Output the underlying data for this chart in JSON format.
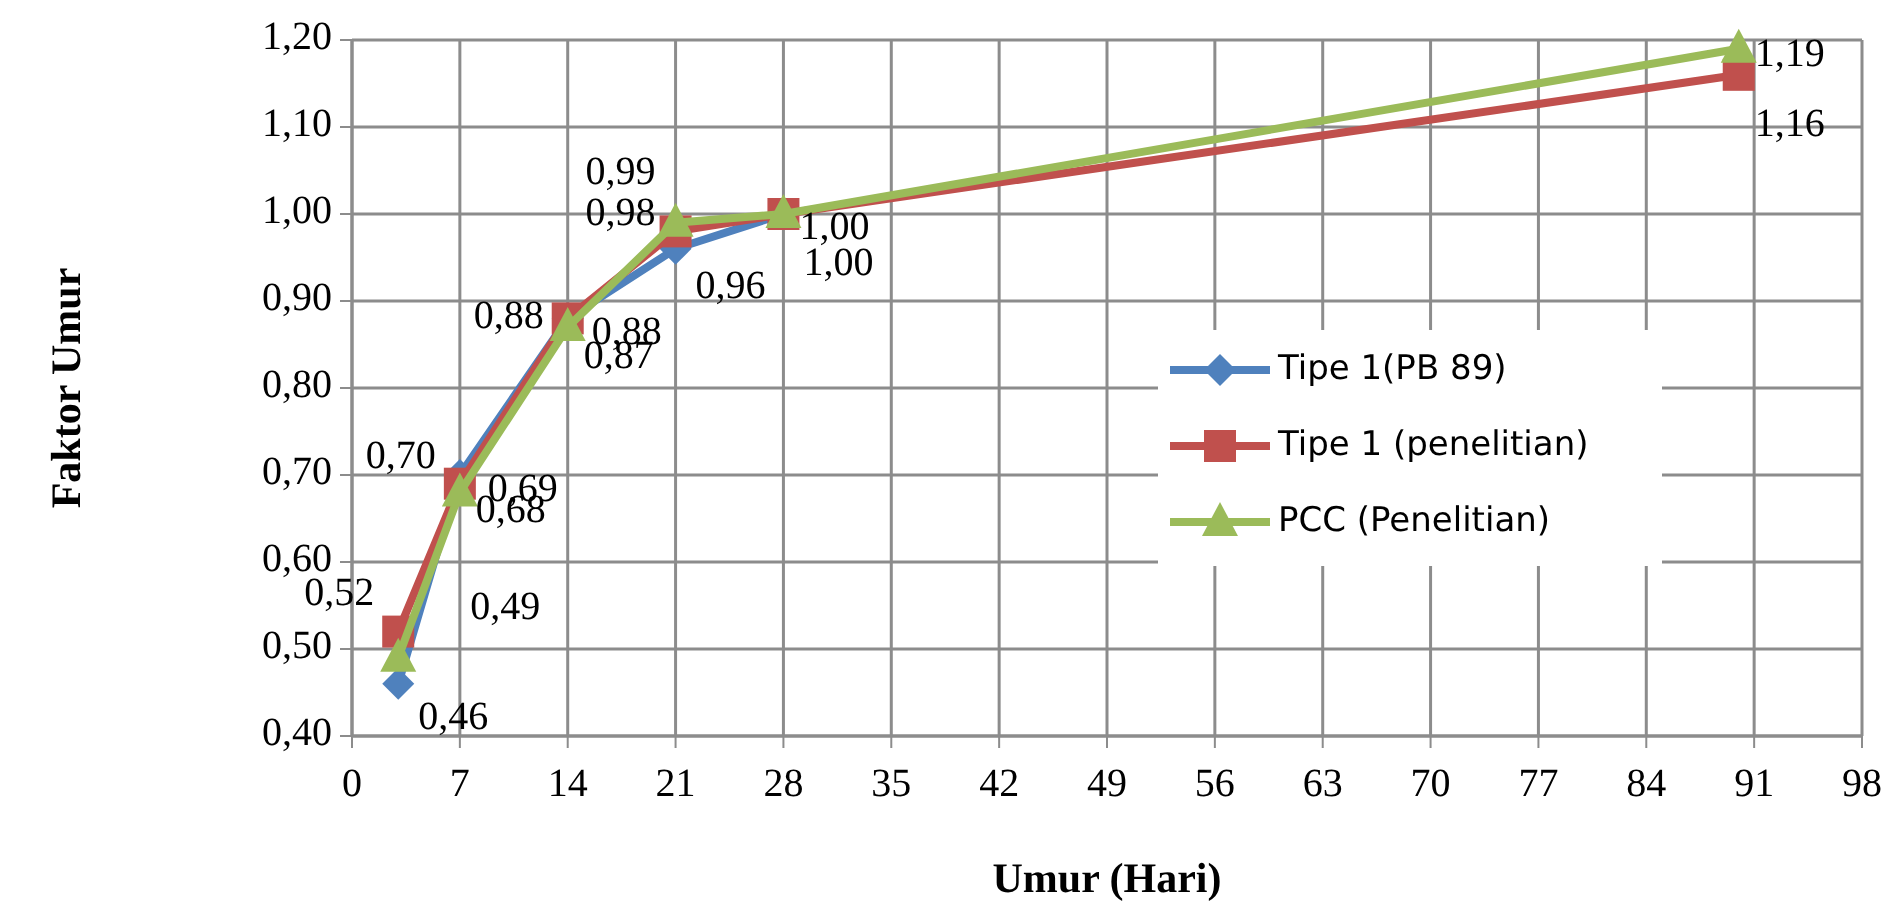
{
  "chart_data": {
    "type": "line",
    "xlabel": "Umur (Hari)",
    "ylabel": "Faktor Umur",
    "xlim": [
      0,
      98
    ],
    "xticks": [
      0,
      7,
      14,
      21,
      28,
      35,
      42,
      49,
      56,
      63,
      70,
      77,
      84,
      91,
      98
    ],
    "ylim": [
      0.4,
      1.2
    ],
    "yticks": [
      {
        "value": 0.4,
        "label": "0,40"
      },
      {
        "value": 0.5,
        "label": "0,50"
      },
      {
        "value": 0.6,
        "label": "0,60"
      },
      {
        "value": 0.7,
        "label": "0,70"
      },
      {
        "value": 0.8,
        "label": "0,80"
      },
      {
        "value": 0.9,
        "label": "0,90"
      },
      {
        "value": 1.0,
        "label": "1,00"
      },
      {
        "value": 1.1,
        "label": "1,10"
      },
      {
        "value": 1.2,
        "label": "1,20"
      }
    ],
    "grid": true,
    "legend": "right",
    "line_style": "solid",
    "series": [
      {
        "name": "Tipe 1(PB 89)",
        "color": "#4f81bd",
        "marker": "diamond",
        "x": [
          3,
          7,
          14,
          21,
          28
        ],
        "values": [
          0.46,
          0.7,
          0.88,
          0.96,
          1.0
        ],
        "value_labels": [
          "0,46",
          "0,70",
          "0,88",
          "0,96",
          null
        ]
      },
      {
        "name": "Tipe 1 (penelitian)",
        "color": "#c0504d",
        "marker": "square",
        "x": [
          3,
          7,
          14,
          21,
          28,
          90
        ],
        "values": [
          0.52,
          0.69,
          0.88,
          0.98,
          1.0,
          1.16
        ],
        "value_labels": [
          "0,52",
          "0,69",
          "0,88",
          "0,98",
          "1,00",
          "1,16"
        ]
      },
      {
        "name": "PCC (Penelitian)",
        "color": "#9bbb59",
        "marker": "triangle",
        "x": [
          3,
          7,
          14,
          21,
          28,
          90
        ],
        "values": [
          0.49,
          0.68,
          0.87,
          0.99,
          1.0,
          1.19
        ],
        "value_labels": [
          "0,49",
          "0,68",
          "0,87",
          "0,99",
          "1,00",
          "1,19"
        ]
      }
    ]
  }
}
